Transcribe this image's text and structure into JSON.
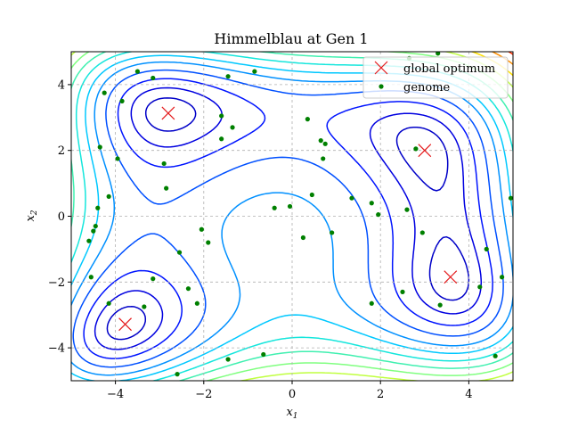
{
  "chart_data": {
    "type": "scatter",
    "title": "Himmelblau at Gen 1",
    "xlabel": "x1",
    "ylabel": "x2",
    "xlim": [
      -5,
      5
    ],
    "ylim": [
      -5,
      5
    ],
    "xticks": [
      -4,
      -2,
      0,
      2,
      4
    ],
    "yticks": [
      -4,
      -2,
      0,
      2,
      4
    ],
    "grid": true,
    "legend_position": "top-right",
    "contour_levels": [
      10,
      30,
      60,
      100,
      150,
      200,
      260,
      330,
      410,
      500,
      600,
      720,
      850
    ],
    "series": [
      {
        "name": "global optimum",
        "marker": "x",
        "color": "#e41a1c",
        "points": [
          [
            -2.805,
            3.131
          ],
          [
            3.0,
            2.0
          ],
          [
            -3.779,
            -3.283
          ],
          [
            3.584,
            -1.848
          ]
        ]
      },
      {
        "name": "genome",
        "marker": "dot",
        "color": "#008000",
        "points": [
          [
            -3.5,
            4.4
          ],
          [
            -3.15,
            4.2
          ],
          [
            -1.45,
            4.25
          ],
          [
            -0.85,
            4.4
          ],
          [
            2.65,
            4.8
          ],
          [
            3.3,
            4.95
          ],
          [
            -4.25,
            3.75
          ],
          [
            -3.85,
            3.5
          ],
          [
            -1.6,
            3.05
          ],
          [
            -1.35,
            2.7
          ],
          [
            0.35,
            2.95
          ],
          [
            -1.6,
            2.35
          ],
          [
            0.65,
            2.3
          ],
          [
            0.75,
            2.2
          ],
          [
            -4.35,
            2.1
          ],
          [
            2.8,
            2.05
          ],
          [
            -3.95,
            1.75
          ],
          [
            0.7,
            1.75
          ],
          [
            -2.9,
            1.6
          ],
          [
            -2.85,
            0.85
          ],
          [
            -4.15,
            0.6
          ],
          [
            0.45,
            0.65
          ],
          [
            1.35,
            0.55
          ],
          [
            1.8,
            0.4
          ],
          [
            -4.4,
            0.25
          ],
          [
            -0.4,
            0.25
          ],
          [
            -0.05,
            0.3
          ],
          [
            2.6,
            0.2
          ],
          [
            1.95,
            0.05
          ],
          [
            -4.45,
            -0.3
          ],
          [
            -4.5,
            -0.45
          ],
          [
            -2.05,
            -0.4
          ],
          [
            0.9,
            -0.5
          ],
          [
            2.95,
            -0.5
          ],
          [
            -4.6,
            -0.75
          ],
          [
            -1.9,
            -0.8
          ],
          [
            0.25,
            -0.65
          ],
          [
            4.4,
            -1.0
          ],
          [
            -2.55,
            -1.1
          ],
          [
            -4.55,
            -1.85
          ],
          [
            -3.15,
            -1.9
          ],
          [
            4.75,
            -1.85
          ],
          [
            4.25,
            -2.15
          ],
          [
            -2.35,
            -2.2
          ],
          [
            2.5,
            -2.3
          ],
          [
            -2.15,
            -2.65
          ],
          [
            -4.15,
            -2.65
          ],
          [
            -3.35,
            -2.75
          ],
          [
            1.8,
            -2.65
          ],
          [
            3.35,
            -2.7
          ],
          [
            -0.65,
            -4.2
          ],
          [
            -1.45,
            -4.35
          ],
          [
            4.6,
            -4.25
          ],
          [
            -2.6,
            -4.8
          ],
          [
            4.95,
            0.55
          ]
        ]
      }
    ]
  }
}
